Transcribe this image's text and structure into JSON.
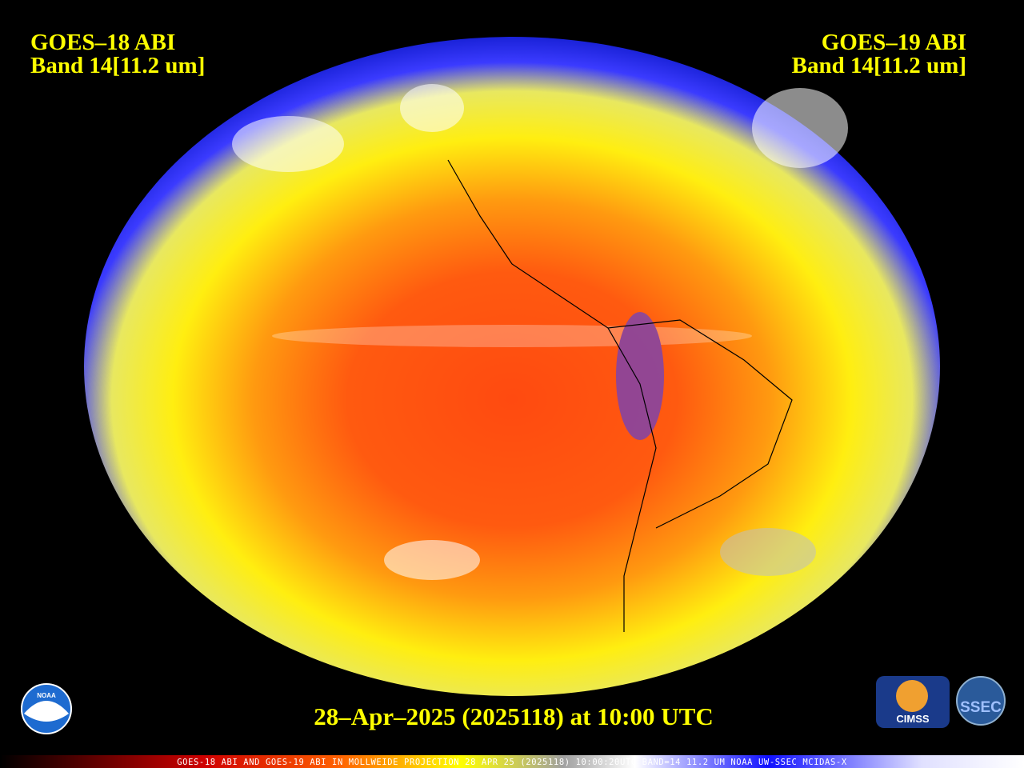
{
  "header": {
    "left": {
      "title": "GOES–18 ABI",
      "band": "Band 14[11.2 um]"
    },
    "right": {
      "title": "GOES–19 ABI",
      "band": "Band 14[11.2 um]"
    }
  },
  "caption": "28–Apr–2025 (2025118) at 10:00 UTC",
  "footer": "GOES-18 ABI AND GOES-19 ABI IN MOLLWEIDE PROJECTION 28 APR 25 (2025118) 10:00:20UTC BAND=14 11.2 UM NOAA UW-SSEC MCIDAS-X",
  "logos": {
    "noaa": "NOAA",
    "cimss": "CIMSS",
    "ssec": "SSEC"
  }
}
